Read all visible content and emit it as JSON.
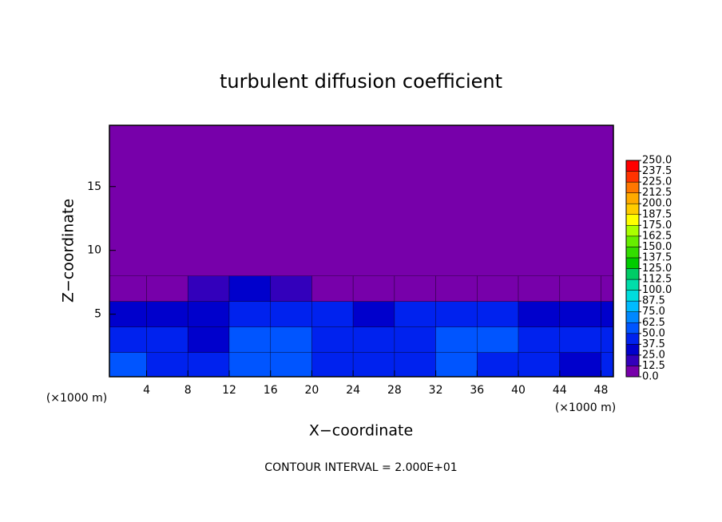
{
  "chart_data": {
    "type": "heatmap",
    "title": "turbulent diffusion coefficient",
    "x_label": "X−coordinate",
    "y_label": "Z−coordinate",
    "x_unit": "(×1000 m)",
    "y_unit": "(×1000 m)",
    "footnote": "CONTOUR INTERVAL = 2.000E+01",
    "xlim": [
      0.4,
      49.2
    ],
    "ylim": [
      0.1,
      19.8
    ],
    "xticks": [
      4,
      8,
      12,
      16,
      20,
      24,
      28,
      32,
      36,
      40,
      44,
      48
    ],
    "yticks": [
      5,
      10,
      15
    ],
    "x": [
      2,
      6,
      10,
      14,
      18,
      22,
      26,
      30,
      34,
      38,
      42,
      46,
      50
    ],
    "y": [
      1,
      3,
      5,
      7
    ],
    "z": [
      [
        50,
        45,
        40,
        55,
        50,
        45,
        40,
        45,
        50,
        45,
        40,
        35,
        40
      ],
      [
        40,
        45,
        35,
        55,
        50,
        45,
        40,
        45,
        55,
        50,
        40,
        40,
        40
      ],
      [
        30,
        35,
        35,
        45,
        45,
        40,
        35,
        40,
        45,
        40,
        35,
        30,
        35
      ],
      [
        10,
        5,
        15,
        25,
        15,
        10,
        5,
        5,
        5,
        5,
        5,
        5,
        5
      ]
    ],
    "levels": [
      {
        "value": 0,
        "label": "0.0"
      },
      {
        "value": 12.5,
        "label": "12.5"
      },
      {
        "value": 25,
        "label": "25.0"
      },
      {
        "value": 37.5,
        "label": "37.5"
      },
      {
        "value": 50,
        "label": "50.0"
      },
      {
        "value": 62.5,
        "label": "62.5"
      },
      {
        "value": 75,
        "label": "75.0"
      },
      {
        "value": 87.5,
        "label": "87.5"
      },
      {
        "value": 100,
        "label": "100.0"
      },
      {
        "value": 112.5,
        "label": "112.5"
      },
      {
        "value": 125,
        "label": "125.0"
      },
      {
        "value": 137.5,
        "label": "137.5"
      },
      {
        "value": 150,
        "label": "150.0"
      },
      {
        "value": 162.5,
        "label": "162.5"
      },
      {
        "value": 175,
        "label": "175.0"
      },
      {
        "value": 187.5,
        "label": "187.5"
      },
      {
        "value": 200,
        "label": "200.0"
      },
      {
        "value": 212.5,
        "label": "212.5"
      },
      {
        "value": 225,
        "label": "225.0"
      },
      {
        "value": 237.5,
        "label": "237.5"
      },
      {
        "value": 250,
        "label": "250.0"
      }
    ],
    "colors": [
      "#7700aa",
      "#3300bb",
      "#0000cc",
      "#0022ee",
      "#0055ff",
      "#0088ff",
      "#00bbff",
      "#00dddd",
      "#00ddaa",
      "#00cc66",
      "#00cc00",
      "#33dd00",
      "#66ee00",
      "#aaff00",
      "#ffff00",
      "#ffcc00",
      "#ffaa00",
      "#ff7700",
      "#ff3300",
      "#ff0000"
    ]
  }
}
